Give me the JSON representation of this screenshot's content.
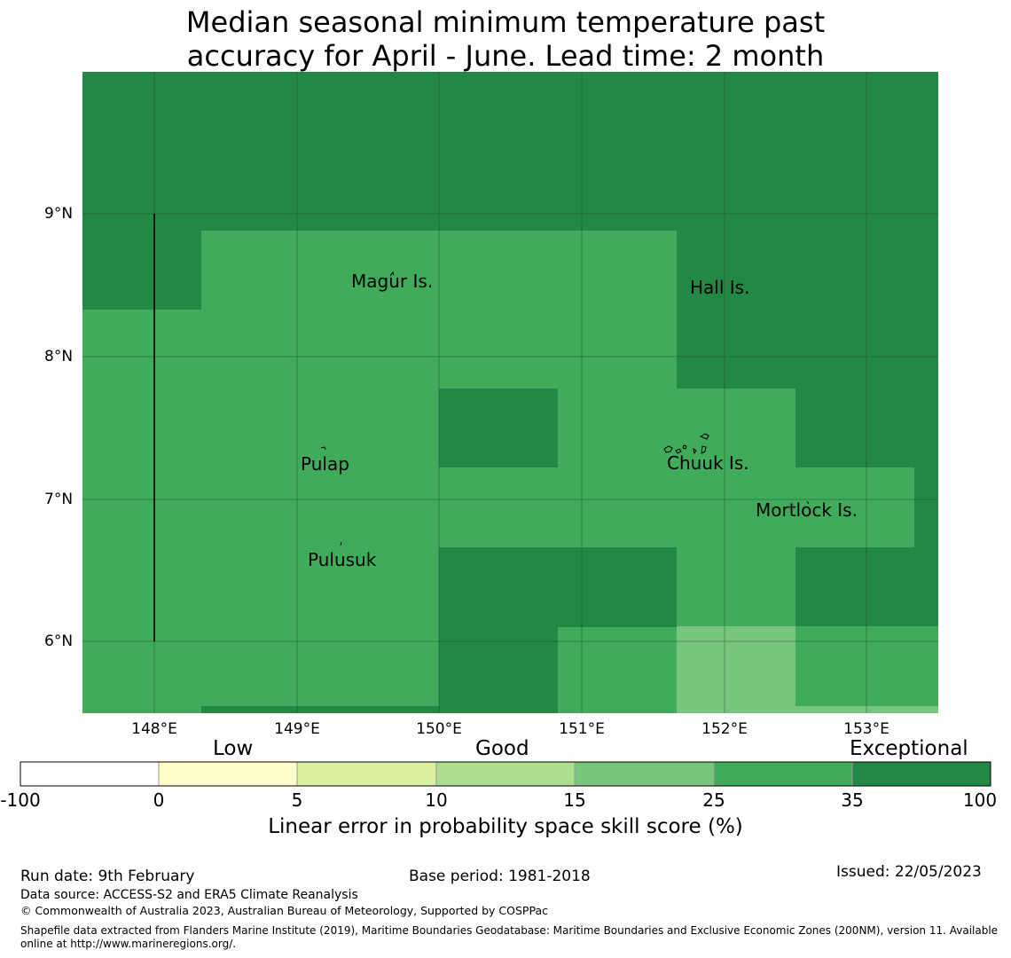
{
  "title": {
    "line1": "Median seasonal minimum temperature past",
    "line2": "accuracy for April - June. Lead time: 2 month"
  },
  "map": {
    "lon_range": [
      147.5,
      153.5
    ],
    "lat_range": [
      5.5,
      10.0
    ],
    "lon_ticks": [
      "148°E",
      "149°E",
      "150°E",
      "151°E",
      "152°E",
      "153°E"
    ],
    "lat_ticks": [
      "9°N",
      "8°N",
      "7°N",
      "6°N"
    ],
    "colors": {
      "exceptional": "#238845",
      "good_35": "#3fab5b",
      "good_25": "#78c67b",
      "gridline": "#1a4a28"
    },
    "places": [
      {
        "name": "Magur Is.",
        "lon": 149.4,
        "lat": 8.5
      },
      {
        "name": "Hall Is.",
        "lon": 151.75,
        "lat": 8.45
      },
      {
        "name": "Pulap",
        "lon": 149.0,
        "lat": 7.2
      },
      {
        "name": "Chuuk Is.",
        "lon": 151.6,
        "lat": 7.22
      },
      {
        "name": "Mortlock Is.",
        "lon": 152.2,
        "lat": 6.89
      },
      {
        "name": "Pulusuk",
        "lon": 149.08,
        "lat": 6.55
      }
    ]
  },
  "colorbar": {
    "category_labels": [
      "Low",
      "Good",
      "Exceptional"
    ],
    "tick_labels": [
      "-100",
      "0",
      "5",
      "10",
      "15",
      "25",
      "35",
      "100"
    ],
    "colors": [
      "#ffffff",
      "#ffffcc",
      "#d9f0a3",
      "#addd8e",
      "#78c67b",
      "#3fab5b",
      "#238845"
    ],
    "xlabel": "Linear error in probability space skill score (%)"
  },
  "footer": {
    "run_date": "Run date: 9th February",
    "base_period": "Base period: 1981-2018",
    "issued": "Issued: 22/05/2023",
    "data_source": "Data source: ACCESS-S2 and ERA5 Climate Reanalysis",
    "copyright": "© Commonwealth of Australia 2023, Australian Bureau of Meteorology, Supported by COSPPac",
    "shapefile_line1": "Shapefile data extracted from Flanders Marine Institute (2019), Maritime Boundaries Geodatabase: Maritime Boundaries and Exclusive Economic Zones (200NM), version 11. Available",
    "shapefile_line2": "online at http://www.marineregions.org/."
  }
}
